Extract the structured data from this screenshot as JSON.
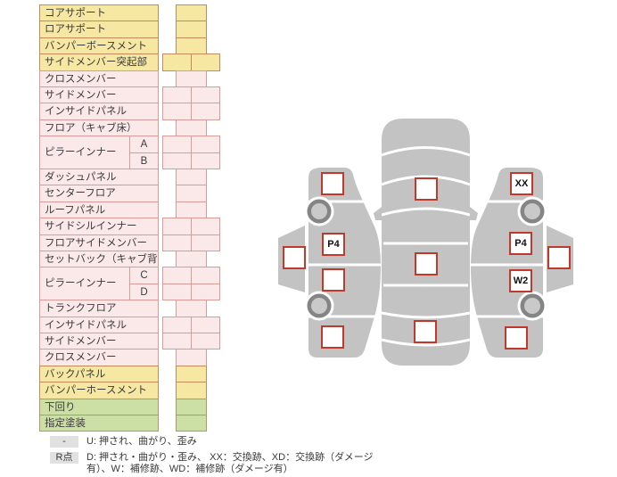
{
  "table": {
    "rows": [
      {
        "label": "コアサポート",
        "color": "y",
        "cells": 1
      },
      {
        "label": "ロアサポート",
        "color": "y",
        "cells": 1
      },
      {
        "label": "バンパーボースメント",
        "color": "y",
        "cells": 1
      },
      {
        "label": "サイドメンバー突起部",
        "color": "y",
        "cells": 2
      },
      {
        "label": "クロスメンバー",
        "color": "p",
        "cells": 1
      },
      {
        "label": "サイドメンバー",
        "color": "p",
        "cells": 2
      },
      {
        "label": "インサイドパネル",
        "color": "p",
        "cells": 2
      },
      {
        "label": "フロア（キャブ床）",
        "color": "p",
        "cells": 1
      },
      {
        "label": "ピラーインナー",
        "color": "p",
        "cells": 2,
        "subs": [
          "A",
          "B"
        ]
      },
      {
        "label": "ダッシュパネル",
        "color": "p",
        "cells": 1
      },
      {
        "label": "センターフロア",
        "color": "p",
        "cells": 1
      },
      {
        "label": "ルーフパネル",
        "color": "p",
        "cells": 1
      },
      {
        "label": "サイドシルインナー",
        "color": "p",
        "cells": 2
      },
      {
        "label": "フロアサイドメンバー",
        "color": "p",
        "cells": 2
      },
      {
        "label": "セットバック（キャブ背）",
        "color": "p",
        "cells": 1
      },
      {
        "label": "ピラーインナー",
        "color": "p",
        "cells": 2,
        "subs": [
          "C",
          "D"
        ]
      },
      {
        "label": "トランクフロア",
        "color": "p",
        "cells": 1
      },
      {
        "label": "インサイドパネル",
        "color": "p",
        "cells": 2
      },
      {
        "label": "サイドメンバー",
        "color": "p",
        "cells": 2
      },
      {
        "label": "クロスメンバー",
        "color": "p",
        "cells": 1
      },
      {
        "label": "バックパネル",
        "color": "y",
        "cells": 1
      },
      {
        "label": "バンパーホースメント",
        "color": "y",
        "cells": 1
      },
      {
        "label": "下回り",
        "color": "g",
        "cells": 1
      },
      {
        "label": "指定塗装",
        "color": "g",
        "cells": 1
      }
    ]
  },
  "diagram": {
    "markers": [
      {
        "id": "left-outer-panel",
        "label": ""
      },
      {
        "id": "left-front-fender",
        "label": ""
      },
      {
        "id": "left-front-door",
        "label": "P4"
      },
      {
        "id": "left-rear-door",
        "label": ""
      },
      {
        "id": "left-rear-quarter",
        "label": ""
      },
      {
        "id": "hood-panel",
        "label": ""
      },
      {
        "id": "roof-panel",
        "label": ""
      },
      {
        "id": "trunk-panel",
        "label": ""
      },
      {
        "id": "right-front-fender",
        "label": "XX"
      },
      {
        "id": "right-front-door",
        "label": "P4"
      },
      {
        "id": "right-rear-door",
        "label": "W2"
      },
      {
        "id": "right-rear-quarter",
        "label": ""
      },
      {
        "id": "right-outer-panel",
        "label": ""
      }
    ]
  },
  "legend": {
    "rows": [
      {
        "badge": "-",
        "text": "U: 押され、曲がり、歪み"
      },
      {
        "badge": "R点",
        "text": "D: 押され・曲がり・歪み、 XX：交換跡、XD：交換跡（ダメージ有）、W：補修跡、WD：補修跡（ダメージ有）"
      }
    ]
  },
  "colors": {
    "yellow": "#F6E8A2",
    "pink": "#FBE9EA",
    "green": "#CCDFA4",
    "border_yellow": "#C28B5E",
    "border_pink": "#D89B97",
    "border_green": "#B49768",
    "marker_border": "#C0392B",
    "car_gray": "#C3C3C3",
    "wheel_ring": "#858585",
    "wheel_hub": "#C9C9C9",
    "badge_bg": "#E1E1E1"
  }
}
